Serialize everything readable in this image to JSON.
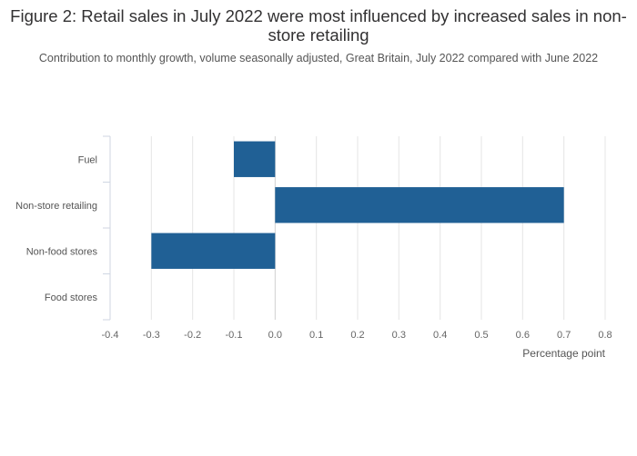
{
  "header": {
    "title": "Figure 2: Retail sales in July 2022 were most influenced by increased sales in non-store retailing",
    "subtitle": "Contribution to monthly growth, volume seasonally adjusted, Great Britain, July 2022 compared with June 2022"
  },
  "chart_data": {
    "type": "bar",
    "orientation": "horizontal",
    "title": "Figure 2: Retail sales in July 2022 were most influenced by increased sales in non-store retailing",
    "subtitle": "Contribution to monthly growth, volume seasonally adjusted, Great Britain, July 2022 compared with June 2022",
    "categories": [
      "Fuel",
      "Non-store retailing",
      "Non-food stores",
      "Food stores"
    ],
    "values": [
      -0.1,
      0.7,
      -0.3,
      0.0
    ],
    "xlabel": "Percentage point",
    "ylabel": "",
    "xlim": [
      -0.4,
      0.8
    ],
    "xticks": [
      "-0.4",
      "-0.3",
      "-0.2",
      "-0.1",
      "0.0",
      "0.1",
      "0.2",
      "0.3",
      "0.4",
      "0.5",
      "0.6",
      "0.7",
      "0.8"
    ],
    "grid": "vertical",
    "bar_color": "#206095",
    "grid_color": "#e5e5e5"
  }
}
